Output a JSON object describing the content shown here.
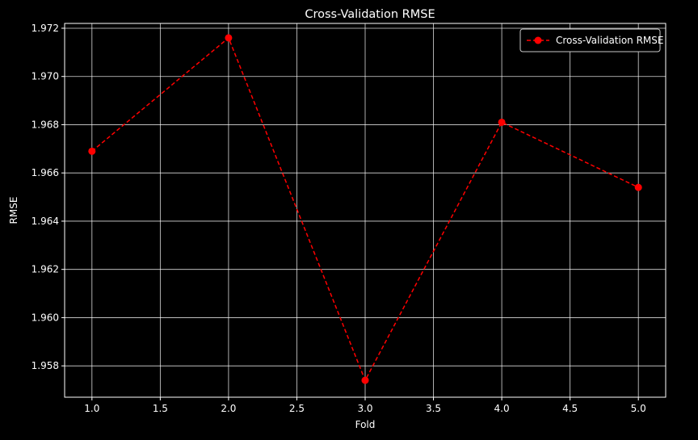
{
  "colors": {
    "background": "#000000",
    "axes": "#ffffff",
    "grid": "#ffffff",
    "series": "#ff0000",
    "legend_border": "#c8c8c8"
  },
  "chart_data": {
    "type": "line",
    "title": "Cross-Validation RMSE",
    "xlabel": "Fold",
    "ylabel": "RMSE",
    "xlim": [
      0.8,
      5.2
    ],
    "ylim": [
      1.9567,
      1.9722
    ],
    "xticks": [
      1.0,
      1.5,
      2.0,
      2.5,
      3.0,
      3.5,
      4.0,
      4.5,
      5.0
    ],
    "xtick_labels": [
      "1.0",
      "1.5",
      "2.0",
      "2.5",
      "3.0",
      "3.5",
      "4.0",
      "4.5",
      "5.0"
    ],
    "yticks": [
      1.958,
      1.96,
      1.962,
      1.964,
      1.966,
      1.968,
      1.97,
      1.972
    ],
    "ytick_labels": [
      "1.958",
      "1.960",
      "1.962",
      "1.964",
      "1.966",
      "1.968",
      "1.970",
      "1.972"
    ],
    "grid": true,
    "legend_position": "top-right",
    "series": [
      {
        "name": "Cross-Validation RMSE",
        "line_style": "dashed",
        "marker": "circle",
        "x": [
          1,
          2,
          3,
          4,
          5
        ],
        "y": [
          1.9669,
          1.9716,
          1.9574,
          1.9681,
          1.9654
        ]
      }
    ]
  }
}
